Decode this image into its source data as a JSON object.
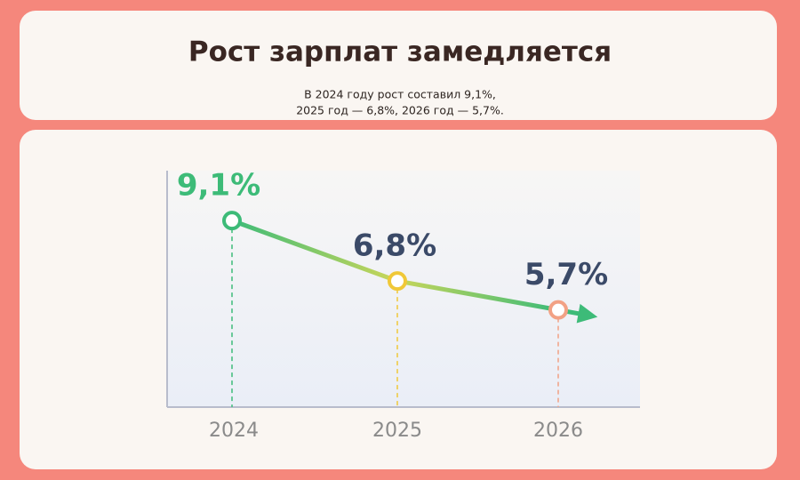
{
  "header": {
    "title": "Рост зарплат замедляется",
    "subtitle": [
      "В 2024 году рост составил 9,1%,",
      "2025 год — 6,8%, 2026 год — 5,7%."
    ]
  },
  "chart_data": {
    "type": "line",
    "categories": [
      "2024",
      "2025",
      "2026"
    ],
    "values": [
      9.1,
      6.8,
      5.7
    ],
    "value_labels": [
      "9,1%",
      "6,8%",
      "5,7%"
    ],
    "point_colors": [
      "#3dbb78",
      "#f0c838",
      "#f2a184"
    ],
    "label_colors": [
      "#3dbb78",
      "#3b4a68",
      "#3b4a68"
    ],
    "ylim": [
      2,
      11
    ]
  }
}
